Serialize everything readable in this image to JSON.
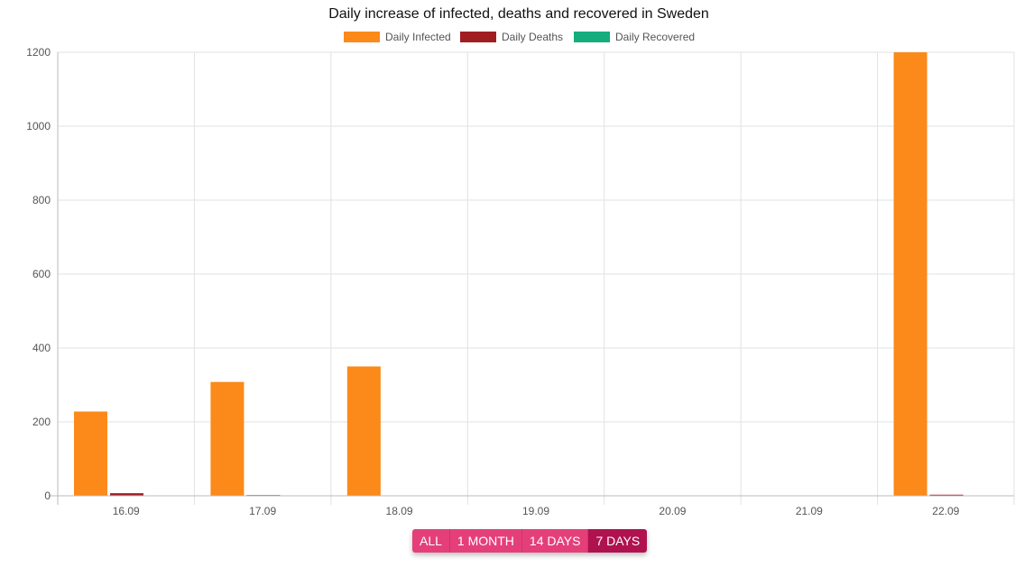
{
  "colors": {
    "infected": "#fb8a1a",
    "deaths": "#a01e22",
    "recovered": "#14ad7b",
    "grid": "#e2e2e2",
    "axis": "#bbbbbb",
    "button": "#e53f7a",
    "button_active": "#b0124f"
  },
  "range_buttons": [
    {
      "label": "ALL",
      "active": false
    },
    {
      "label": "1 MONTH",
      "active": false
    },
    {
      "label": "14 DAYS",
      "active": false
    },
    {
      "label": "7 DAYS",
      "active": true
    }
  ],
  "chart_data": {
    "type": "bar",
    "title": "Daily increase of infected, deaths and recovered in Sweden",
    "xlabel": "",
    "ylabel": "",
    "categories": [
      "16.09",
      "17.09",
      "18.09",
      "19.09",
      "20.09",
      "21.09",
      "22.09"
    ],
    "series": [
      {
        "name": "Daily Infected",
        "color": "#fb8a1a",
        "values": [
          228,
          308,
          350,
          0,
          0,
          0,
          1200
        ]
      },
      {
        "name": "Daily Deaths",
        "color": "#a01e22",
        "values": [
          7,
          2,
          0,
          0,
          0,
          0,
          3
        ]
      },
      {
        "name": "Daily Recovered",
        "color": "#14ad7b",
        "values": [
          0,
          0,
          0,
          0,
          0,
          0,
          0
        ]
      }
    ],
    "ylim": [
      0,
      1200
    ],
    "yticks": [
      0,
      200,
      400,
      600,
      800,
      1000,
      1200
    ],
    "grid": true,
    "legend": "top-center"
  }
}
